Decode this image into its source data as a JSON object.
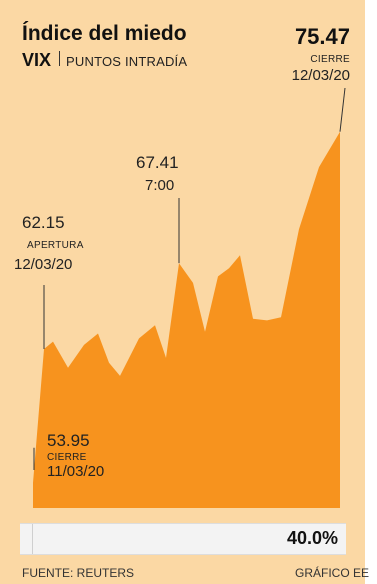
{
  "header": {
    "title": "Índice del miedo",
    "subtitle_bold": "VIX",
    "subtitle_rest": "PUNTOS INTRADÍA"
  },
  "chart_data": {
    "type": "area",
    "series": [
      {
        "name": "",
        "values": [
          53.95,
          62.15,
          62.6,
          61.0,
          62.4,
          63.1,
          61.3,
          60.5,
          62.8,
          63.6,
          61.6,
          67.41,
          66.2,
          63.2,
          66.6,
          67.1,
          67.9,
          64.0,
          63.9,
          64.1,
          69.5,
          73.3,
          75.47
        ]
      }
    ],
    "ylim": [
      52.4,
      76.8
    ],
    "grid": false,
    "color": "#f7931e",
    "annotations": {
      "cierre_prev": {
        "value": "53.95",
        "label": "CIERRE",
        "date": "11/03/20"
      },
      "apertura": {
        "value": "62.15",
        "label": "APERTURA",
        "date": "12/03/20"
      },
      "peak": {
        "value": "67.41",
        "time": "7:00"
      },
      "cierre": {
        "value": "75.47",
        "label": "CIERRE",
        "date": "12/03/20"
      }
    }
  },
  "change": {
    "value": "40.0%"
  },
  "footer": {
    "source": "FUENTE: REUTERS",
    "credit": "GRÁFICO EE"
  }
}
